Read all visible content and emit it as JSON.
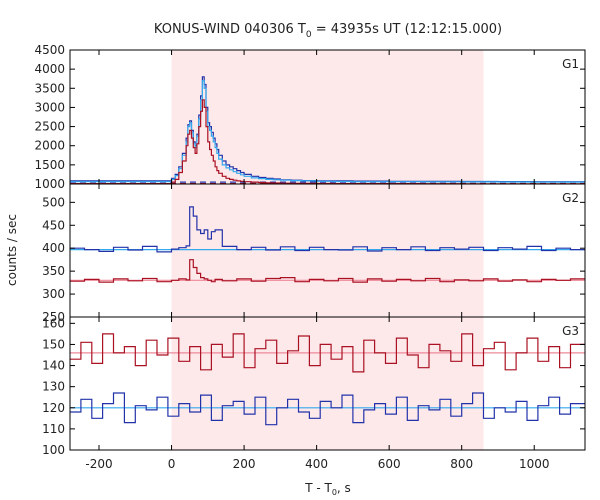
{
  "chart_data": {
    "type": "line",
    "title": "KONUS-WIND 040306 T",
    "title_subscript": "0",
    "title_suffix": " = 43935s UT (12:12:15.000)",
    "xlabel": "T - T",
    "xlabel_subscript": "0",
    "xlabel_suffix": ", s",
    "ylabel": "counts / sec",
    "xlim": [
      -280,
      1140
    ],
    "x_ticks": [
      -200,
      0,
      200,
      400,
      600,
      800,
      1000
    ],
    "x_tick_labels": [
      "-200",
      "0",
      "200",
      "400",
      "600",
      "800",
      "1000"
    ],
    "highlight_interval": [
      0,
      860
    ],
    "highlight_color": "#fde8ea",
    "colors": {
      "dark_blue": "#2233aa",
      "light_blue": "#33aaee",
      "dark_red": "#aa1122",
      "pink_fit": "#ee8899"
    },
    "panels": [
      {
        "name": "G1",
        "ylim": [
          1000,
          4500
        ],
        "y_ticks": [
          1000,
          1500,
          2000,
          2500,
          3000,
          3500,
          4000,
          4500
        ],
        "y_tick_labels": [
          "1000",
          "1500",
          "2000",
          "2500",
          "3000",
          "3500",
          "4000",
          "4500"
        ],
        "series": [
          {
            "name": "G1 background (dark blue, dashed)",
            "color": "dark_blue",
            "dashed": true,
            "x": [
              -280,
              1140
            ],
            "values": [
              1050,
              1050
            ]
          },
          {
            "name": "G1 background (dark red, dashed)",
            "color": "dark_red",
            "dashed": true,
            "x": [
              -280,
              1140
            ],
            "values": [
              1010,
              1010
            ]
          },
          {
            "name": "G1 light curve (dark blue)",
            "color": "dark_blue",
            "step": true,
            "x": [
              -280,
              0,
              10,
              20,
              30,
              40,
              45,
              50,
              55,
              60,
              65,
              70,
              75,
              80,
              85,
              90,
              95,
              100,
              105,
              110,
              115,
              120,
              125,
              130,
              140,
              150,
              160,
              170,
              180,
              190,
              200,
              220,
              240,
              260,
              280,
              300,
              330,
              360,
              400,
              450,
              500,
              600,
              700,
              800,
              900,
              1000,
              1140
            ],
            "values": [
              1080,
              1150,
              1250,
              1450,
              1800,
              2200,
              2550,
              2650,
              2400,
              2100,
              2000,
              2300,
              2800,
              3300,
              3800,
              3600,
              3000,
              2600,
              2500,
              2350,
              2200,
              2050,
              1900,
              1750,
              1600,
              1500,
              1450,
              1400,
              1350,
              1300,
              1250,
              1200,
              1170,
              1150,
              1130,
              1110,
              1100,
              1090,
              1080,
              1080,
              1075,
              1070,
              1068,
              1065,
              1062,
              1060,
              1060
            ]
          },
          {
            "name": "G1 light curve (light blue)",
            "color": "light_blue",
            "step": true,
            "x": [
              -280,
              0,
              10,
              20,
              30,
              40,
              45,
              50,
              55,
              60,
              65,
              70,
              75,
              80,
              85,
              90,
              95,
              100,
              105,
              110,
              115,
              120,
              125,
              130,
              140,
              150,
              160,
              170,
              180,
              190,
              200,
              220,
              240,
              260,
              280,
              300,
              330,
              360,
              400,
              450,
              500,
              600,
              700,
              800,
              900,
              1000,
              1140
            ],
            "values": [
              1060,
              1120,
              1220,
              1400,
              1750,
              2100,
              2500,
              2600,
              2350,
              2050,
              1950,
              2250,
              2700,
              3200,
              3700,
              3500,
              2900,
              2500,
              2400,
              2250,
              2100,
              1950,
              1800,
              1650,
              1500,
              1420,
              1370,
              1320,
              1280,
              1240,
              1200,
              1160,
              1140,
              1120,
              1110,
              1100,
              1090,
              1080,
              1070,
              1065,
              1060,
              1060,
              1058,
              1055,
              1052,
              1050,
              1050
            ]
          },
          {
            "name": "G1 light curve (dark red)",
            "color": "dark_red",
            "step": true,
            "x": [
              -280,
              0,
              10,
              20,
              30,
              40,
              45,
              50,
              55,
              60,
              65,
              70,
              75,
              80,
              85,
              90,
              95,
              100,
              105,
              110,
              115,
              120,
              125,
              130,
              140,
              150,
              160,
              170,
              180,
              190,
              200,
              220,
              240,
              260,
              280,
              300,
              330,
              360,
              400,
              450,
              500,
              600,
              700,
              800,
              900,
              1000,
              1140
            ],
            "values": [
              1010,
              1050,
              1120,
              1300,
              1600,
              2000,
              2300,
              2400,
              2200,
              1950,
              1800,
              2050,
              2500,
              2900,
              3200,
              3000,
              2500,
              2100,
              1900,
              1750,
              1600,
              1450,
              1350,
              1280,
              1200,
              1150,
              1120,
              1100,
              1080,
              1070,
              1060,
              1050,
              1040,
              1030,
              1025,
              1020,
              1018,
              1015,
              1012,
              1010,
              1010,
              1010,
              1008,
              1006,
              1005,
              1005,
              1005
            ]
          }
        ]
      },
      {
        "name": "G2",
        "ylim": [
          250,
          540
        ],
        "y_ticks": [
          250,
          300,
          350,
          400,
          450,
          500
        ],
        "y_tick_labels": [
          "250",
          "300",
          "350",
          "400",
          "450",
          "500"
        ],
        "series": [
          {
            "name": "G2 fit (light blue)",
            "color": "light_blue",
            "x": [
              -280,
              1140
            ],
            "values": [
              397,
              397
            ]
          },
          {
            "name": "G2 fit (pink)",
            "color": "pink_fit",
            "x": [
              -280,
              1140
            ],
            "values": [
              330,
              330
            ]
          },
          {
            "name": "G2 light curve (dark blue)",
            "color": "dark_blue",
            "step": true,
            "x": [
              -280,
              -240,
              -200,
              -160,
              -120,
              -80,
              -40,
              0,
              20,
              40,
              50,
              60,
              70,
              80,
              90,
              100,
              110,
              120,
              140,
              180,
              220,
              260,
              300,
              340,
              380,
              420,
              460,
              500,
              540,
              580,
              620,
              660,
              700,
              740,
              780,
              820,
              860,
              900,
              940,
              980,
              1020,
              1060,
              1100,
              1140
            ],
            "values": [
              400,
              397,
              393,
              402,
              396,
              404,
              392,
              398,
              401,
              405,
              490,
              470,
              440,
              432,
              440,
              420,
              436,
              440,
              404,
              397,
              402,
              396,
              403,
              395,
              402,
              397,
              396,
              403,
              394,
              401,
              397,
              403,
              395,
              401,
              398,
              402,
              395,
              401,
              398,
              404,
              395,
              400,
              397,
              397
            ]
          },
          {
            "name": "G2 light curve (dark red)",
            "color": "dark_red",
            "step": true,
            "x": [
              -280,
              -240,
              -200,
              -160,
              -120,
              -80,
              -40,
              0,
              20,
              40,
              50,
              60,
              70,
              80,
              90,
              100,
              110,
              120,
              140,
              180,
              220,
              260,
              300,
              340,
              380,
              420,
              460,
              500,
              540,
              580,
              620,
              660,
              700,
              740,
              780,
              820,
              860,
              900,
              940,
              980,
              1020,
              1060,
              1100,
              1140
            ],
            "values": [
              328,
              332,
              326,
              333,
              329,
              334,
              327,
              330,
              333,
              331,
              375,
              358,
              345,
              336,
              333,
              330,
              327,
              332,
              329,
              333,
              328,
              334,
              336,
              327,
              332,
              329,
              334,
              326,
              333,
              328,
              332,
              329,
              334,
              327,
              331,
              329,
              333,
              328,
              331,
              327,
              332,
              330,
              333,
              333
            ]
          }
        ]
      },
      {
        "name": "G3",
        "ylim": [
          100,
          163
        ],
        "y_ticks": [
          100,
          110,
          120,
          130,
          140,
          150,
          160
        ],
        "y_tick_labels": [
          "100",
          "110",
          "120",
          "130",
          "140",
          "150",
          "160"
        ],
        "series": [
          {
            "name": "G3 fit (pink)",
            "color": "pink_fit",
            "x": [
              -280,
              1140
            ],
            "values": [
              146,
              146
            ]
          },
          {
            "name": "G3 fit (light blue)",
            "color": "light_blue",
            "x": [
              -280,
              1140
            ],
            "values": [
              120,
              120
            ]
          },
          {
            "name": "G3 light curve (dark red)",
            "color": "dark_red",
            "step": true,
            "x": [
              -280,
              -250,
              -220,
              -190,
              -160,
              -130,
              -100,
              -70,
              -40,
              -10,
              20,
              50,
              80,
              110,
              140,
              170,
              200,
              230,
              260,
              290,
              320,
              350,
              380,
              410,
              440,
              470,
              500,
              530,
              560,
              590,
              620,
              650,
              680,
              710,
              740,
              770,
              800,
              830,
              860,
              890,
              920,
              950,
              980,
              1010,
              1040,
              1070,
              1100,
              1140
            ],
            "values": [
              143,
              151,
              141,
              155,
              146,
              149,
              140,
              152,
              145,
              153,
              142,
              149,
              138,
              150,
              144,
              155,
              139,
              148,
              152,
              141,
              147,
              154,
              140,
              150,
              143,
              149,
              137,
              152,
              146,
              141,
              153,
              145,
              139,
              150,
              147,
              142,
              155,
              140,
              148,
              151,
              138,
              146,
              153,
              142,
              149,
              139,
              150,
              150
            ]
          },
          {
            "name": "G3 light curve (dark blue)",
            "color": "dark_blue",
            "step": true,
            "x": [
              -280,
              -250,
              -220,
              -190,
              -160,
              -130,
              -100,
              -70,
              -40,
              -10,
              20,
              50,
              80,
              110,
              140,
              170,
              200,
              230,
              260,
              290,
              320,
              350,
              380,
              410,
              440,
              470,
              500,
              530,
              560,
              590,
              620,
              650,
              680,
              710,
              740,
              770,
              800,
              830,
              860,
              890,
              920,
              950,
              980,
              1010,
              1040,
              1070,
              1100,
              1140
            ],
            "values": [
              118,
              124,
              115,
              122,
              127,
              113,
              121,
              119,
              125,
              116,
              122,
              118,
              126,
              114,
              121,
              123,
              117,
              125,
              112,
              120,
              124,
              118,
              115,
              123,
              120,
              126,
              113,
              119,
              122,
              117,
              125,
              114,
              121,
              119,
              124,
              116,
              122,
              127,
              115,
              120,
              118,
              123,
              114,
              121,
              125,
              117,
              122,
              122
            ]
          }
        ]
      }
    ]
  }
}
